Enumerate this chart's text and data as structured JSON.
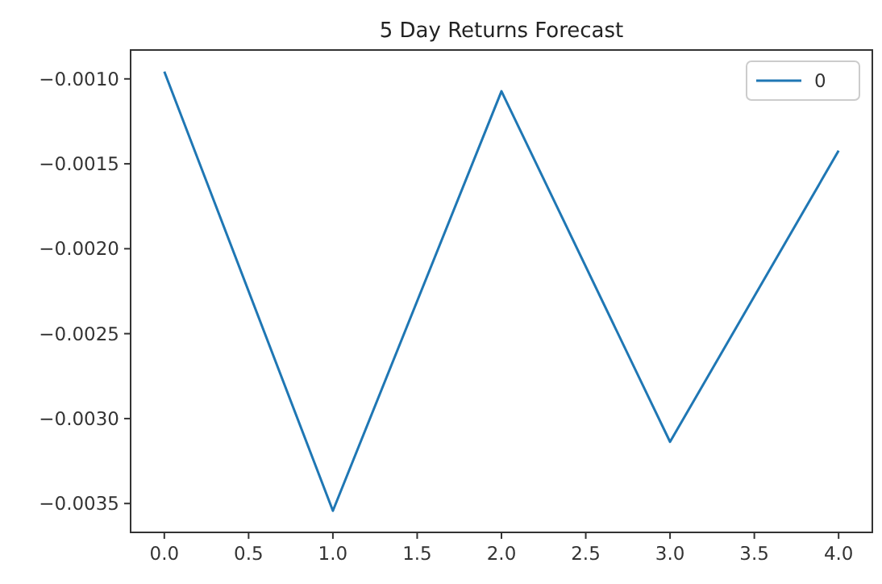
{
  "chart_data": {
    "type": "line",
    "title": "5 Day Returns Forecast",
    "x": [
      0,
      1,
      2,
      3,
      4
    ],
    "series": [
      {
        "name": "0",
        "color": "#1f77b4",
        "values": [
          -0.000957,
          -0.003543,
          -0.001073,
          -0.003137,
          -0.001423
        ]
      }
    ],
    "xlim": [
      -0.2,
      4.2
    ],
    "xticks": [
      {
        "value": 0,
        "label": "0.0"
      },
      {
        "value": 0.5,
        "label": "0.5"
      },
      {
        "value": 1,
        "label": "1.0"
      },
      {
        "value": 1.5,
        "label": "1.5"
      },
      {
        "value": 2,
        "label": "2.0"
      },
      {
        "value": 2.5,
        "label": "2.5"
      },
      {
        "value": 3,
        "label": "3.0"
      },
      {
        "value": 3.5,
        "label": "3.5"
      },
      {
        "value": 4,
        "label": "4.0"
      }
    ],
    "ylim": [
      -0.00367,
      -0.00083
    ],
    "yticks": [
      {
        "value": -0.001,
        "label": "−0.0010"
      },
      {
        "value": -0.0015,
        "label": "−0.0015"
      },
      {
        "value": -0.002,
        "label": "−0.0020"
      },
      {
        "value": -0.0025,
        "label": "−0.0025"
      },
      {
        "value": -0.003,
        "label": "−0.0030"
      },
      {
        "value": -0.0035,
        "label": "−0.0035"
      }
    ],
    "legend": "top right",
    "grid": false,
    "line_style": "solid"
  }
}
